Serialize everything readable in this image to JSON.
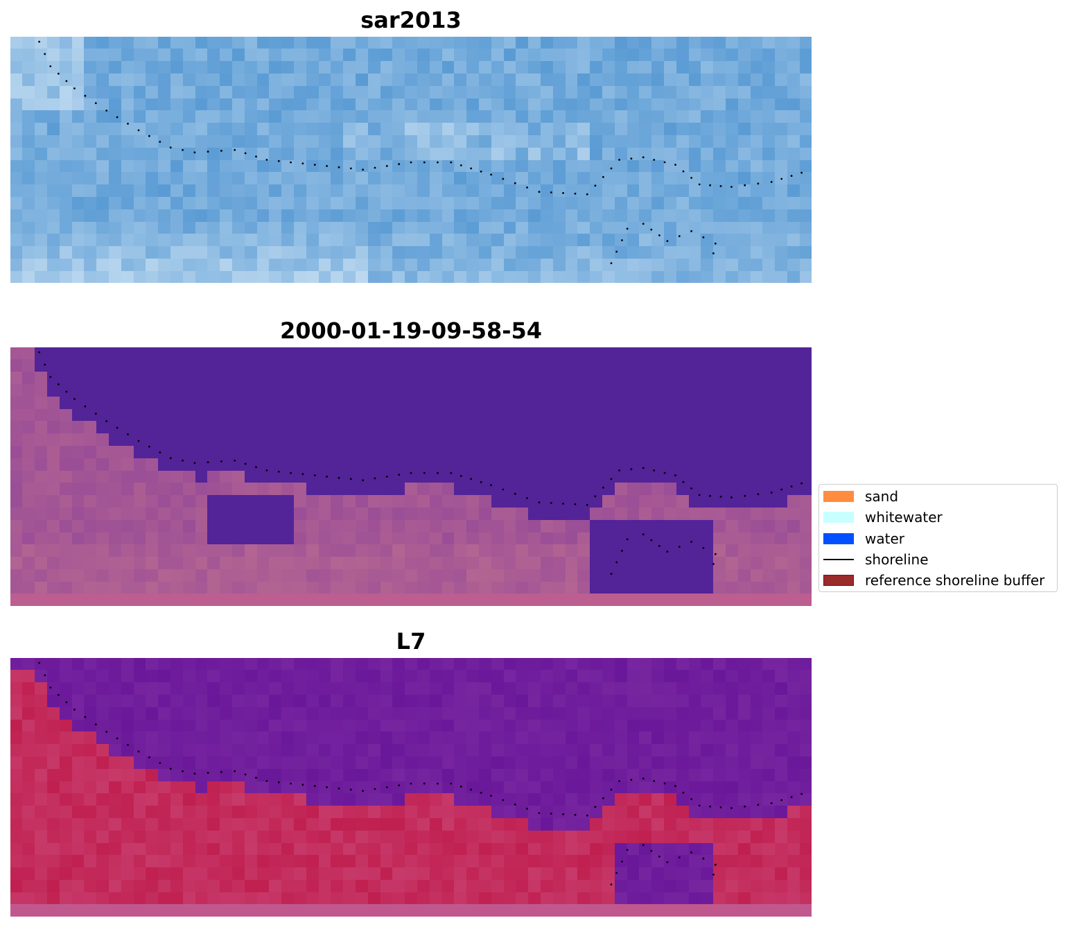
{
  "panels": [
    {
      "title": "sar2013",
      "style": "sar"
    },
    {
      "title": "2000-01-19-09-58-54",
      "style": "classified"
    },
    {
      "title": "L7",
      "style": "falsecolor"
    }
  ],
  "legend": {
    "items": [
      {
        "label": "sand",
        "kind": "patch",
        "color": "#FF8C3F"
      },
      {
        "label": "whitewater",
        "kind": "patch",
        "color": "#C8FFFF"
      },
      {
        "label": "water",
        "kind": "patch",
        "color": "#0050FF"
      },
      {
        "label": "shoreline",
        "kind": "line",
        "color": "#000000"
      },
      {
        "label": "reference shoreline buffer",
        "kind": "patch",
        "color": "#9B2A2A"
      }
    ]
  },
  "colors": {
    "sar_water": "#5A9BD4",
    "sar_light": "#E8F4FC",
    "classified_water": "#532398",
    "classified_land": "#9A4E96",
    "l7_water": "#6A189A",
    "l7_land": "#C02050",
    "l7_bottom_band": "#C0588E",
    "shoreline_dots": "#000000"
  }
}
